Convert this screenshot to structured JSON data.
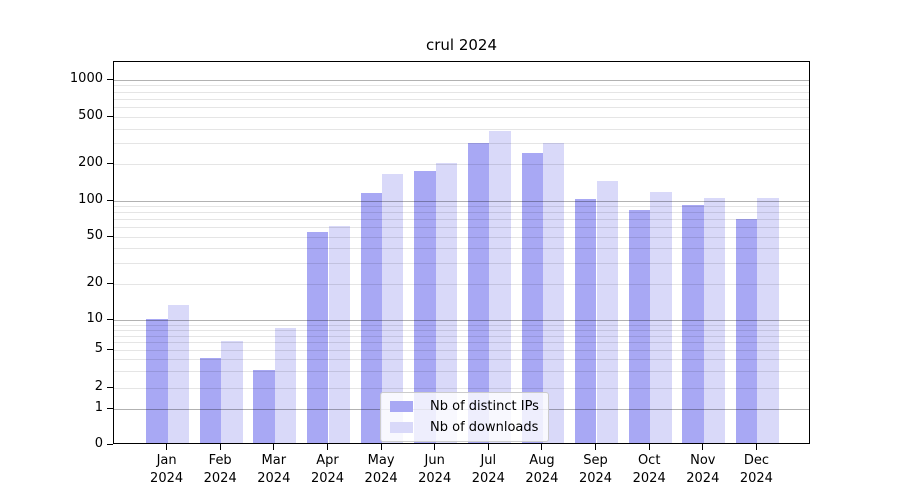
{
  "chart_data": {
    "type": "bar",
    "title": "crul 2024",
    "categories": [
      "Jan",
      "Feb",
      "Mar",
      "Apr",
      "May",
      "Jun",
      "Jul",
      "Aug",
      "Sep",
      "Oct",
      "Nov",
      "Dec"
    ],
    "category_year": "2024",
    "series": [
      {
        "name": "Nb of distinct IPs",
        "color": "#a8a8f4",
        "values": [
          10,
          4,
          3,
          53,
          113,
          170,
          295,
          243,
          100,
          82,
          90,
          68
        ]
      },
      {
        "name": "Nb of downloads",
        "color": "#d9d9f9",
        "values": [
          13,
          6,
          8,
          60,
          162,
          200,
          370,
          292,
          143,
          115,
          103,
          103
        ]
      }
    ],
    "yticks": [
      0,
      1,
      2,
      5,
      10,
      20,
      50,
      100,
      200,
      500,
      1000
    ],
    "ylabel": "",
    "xlabel": "",
    "yscale": "asinh (logarithmic above 1, linear 0-1)",
    "ylim": [
      0,
      1400
    ],
    "grid": "horizontal, major lines at powers of 10, light minor lines",
    "legend_position": "lower center"
  }
}
